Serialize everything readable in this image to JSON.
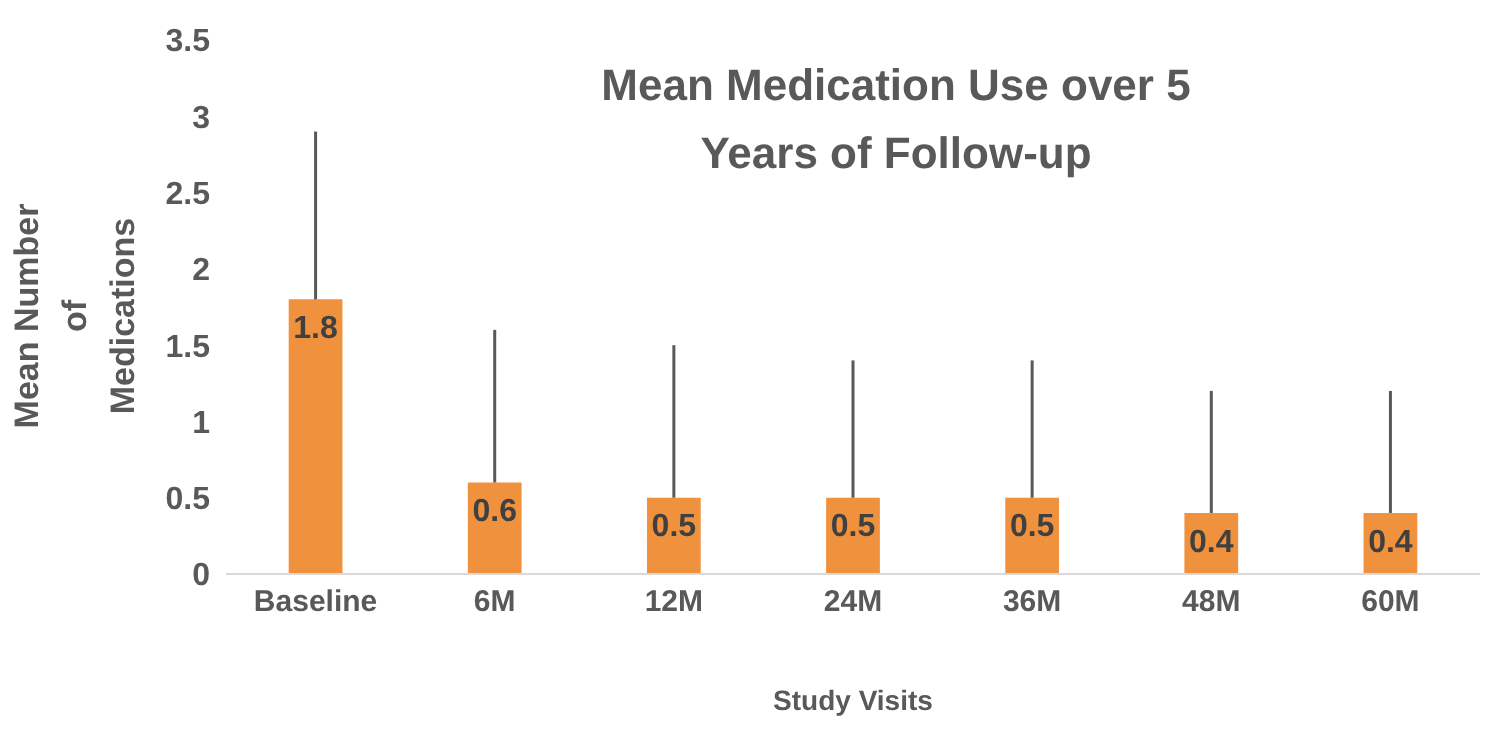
{
  "chart_data": {
    "type": "bar",
    "title": "Mean Medication Use over 5 Years of Follow-up",
    "xlabel": "Study Visits",
    "ylabel": "Mean Number of Medications",
    "categories": [
      "Baseline",
      "6M",
      "12M",
      "24M",
      "36M",
      "48M",
      "60M"
    ],
    "values": [
      1.8,
      0.6,
      0.5,
      0.5,
      0.5,
      0.4,
      0.4
    ],
    "errors": [
      [
        1.8,
        2.9
      ],
      [
        0.6,
        1.6
      ],
      [
        0.5,
        1.5
      ],
      [
        0.5,
        1.4
      ],
      [
        0.5,
        1.4
      ],
      [
        0.4,
        1.2
      ],
      [
        0.4,
        1.2
      ]
    ],
    "color": "#f0913d",
    "ylim": [
      0,
      3.5
    ],
    "yticks": [
      0,
      0.5,
      1,
      1.5,
      2,
      2.5,
      3,
      3.5
    ],
    "grid": false,
    "data_labels": true
  }
}
